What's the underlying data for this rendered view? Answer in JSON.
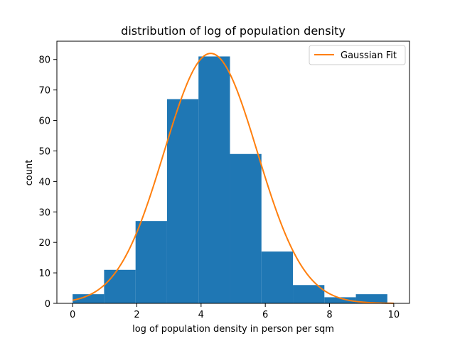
{
  "chart_data": {
    "type": "bar",
    "title": "distribution of log of population density",
    "xlabel": "log of population density in person per sqm",
    "ylabel": "count",
    "xlim": [
      -0.49,
      10.49
    ],
    "ylim": [
      0,
      86
    ],
    "xticks": [
      0,
      2,
      4,
      6,
      8,
      10
    ],
    "yticks": [
      0,
      10,
      20,
      30,
      40,
      50,
      60,
      70,
      80
    ],
    "grid": false,
    "legend_position": "top-right",
    "histogram": {
      "bin_edges": [
        0.0,
        0.98,
        1.96,
        2.94,
        3.92,
        4.9,
        5.88,
        6.86,
        7.84,
        8.82,
        9.8
      ],
      "counts": [
        3,
        11,
        27,
        67,
        81,
        49,
        17,
        6,
        2,
        3
      ],
      "color": "#1f77b4"
    },
    "series": [
      {
        "name": "Gaussian Fit",
        "type": "line",
        "color": "#ff7f0e",
        "function": "gaussian",
        "amplitude": 82,
        "mean": 4.3,
        "sigma": 1.45,
        "x_range": [
          0,
          10
        ]
      }
    ]
  }
}
